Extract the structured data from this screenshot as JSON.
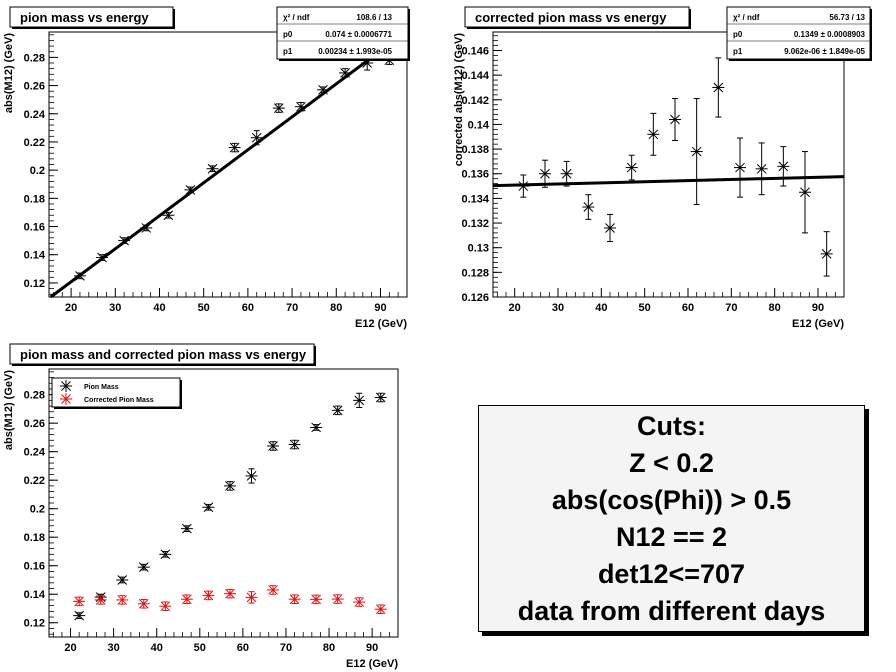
{
  "chart_data": [
    {
      "type": "scatter",
      "title": "pion mass vs energy",
      "xlabel": "E12 (GeV)",
      "ylabel": "abs(M12) (GeV)",
      "xlim": [
        15,
        96
      ],
      "ylim": [
        0.11,
        0.298
      ],
      "xticks": [
        20,
        30,
        40,
        50,
        60,
        70,
        80,
        90
      ],
      "xtick_labels": [
        "20",
        "30",
        "40",
        "50",
        "60",
        "70",
        "80",
        "90"
      ],
      "yticks": [
        0.12,
        0.14,
        0.16,
        0.18,
        0.2,
        0.22,
        0.24,
        0.26,
        0.28
      ],
      "ytick_labels": [
        "0.12",
        "0.14",
        "0.16",
        "0.18",
        "0.2",
        "0.22",
        "0.24",
        "0.26",
        "0.28"
      ],
      "series": [
        {
          "color": "#000000",
          "x": [
            22,
            27,
            32,
            37,
            42,
            47,
            52,
            57,
            62,
            67,
            72,
            77,
            82,
            87,
            92
          ],
          "y": [
            0.125,
            0.138,
            0.15,
            0.159,
            0.168,
            0.186,
            0.201,
            0.216,
            0.223,
            0.244,
            0.245,
            0.257,
            0.269,
            0.276,
            0.278
          ],
          "yerr": [
            0.002,
            0.002,
            0.002,
            0.002,
            0.002,
            0.002,
            0.002,
            0.003,
            0.005,
            0.003,
            0.003,
            0.002,
            0.003,
            0.005,
            0.003
          ]
        }
      ],
      "fit": {
        "p0": 0.074,
        "p1": 0.00234
      },
      "stats": [
        {
          "label": "χ² / ndf",
          "value": "108.6 / 13"
        },
        {
          "label": "p0",
          "value": "0.074 ± 0.0006771"
        },
        {
          "label": "p1",
          "value": "0.00234 ± 1.993e-05"
        }
      ],
      "grid": false
    },
    {
      "type": "scatter",
      "title": "corrected pion mass vs energy",
      "xlabel": "E12 (GeV)",
      "ylabel": "corrected abs(M12) (GeV)",
      "xlim": [
        15,
        96
      ],
      "ylim": [
        0.126,
        0.1475
      ],
      "xticks": [
        20,
        30,
        40,
        50,
        60,
        70,
        80,
        90
      ],
      "xtick_labels": [
        "20",
        "30",
        "40",
        "50",
        "60",
        "70",
        "80",
        "90"
      ],
      "yticks": [
        0.126,
        0.128,
        0.13,
        0.132,
        0.134,
        0.136,
        0.138,
        0.14,
        0.142,
        0.144,
        0.146
      ],
      "ytick_labels": [
        "0.126",
        "0.128",
        "0.13",
        "0.132",
        "0.134",
        "0.136",
        "0.138",
        "0.14",
        "0.142",
        "0.144",
        "0.146"
      ],
      "series": [
        {
          "color": "#000000",
          "x": [
            22,
            27,
            32,
            37,
            42,
            47,
            52,
            57,
            62,
            67,
            72,
            77,
            82,
            87,
            92
          ],
          "y": [
            0.135,
            0.136,
            0.136,
            0.1333,
            0.1316,
            0.1365,
            0.1392,
            0.1404,
            0.1378,
            0.143,
            0.1365,
            0.1364,
            0.1366,
            0.1345,
            0.1295
          ],
          "yerr": [
            0.0009,
            0.0011,
            0.001,
            0.001,
            0.0011,
            0.001,
            0.0017,
            0.0017,
            0.0043,
            0.0024,
            0.0024,
            0.0021,
            0.0016,
            0.0033,
            0.0018
          ]
        }
      ],
      "fit": {
        "p0": 0.1349,
        "p1": 9.062e-06
      },
      "stats": [
        {
          "label": "χ² / ndf",
          "value": "56.73 / 13"
        },
        {
          "label": "p0",
          "value": "0.1349 ± 0.0008903"
        },
        {
          "label": "p1",
          "value": "9.062e-06 ± 1.849e-05"
        }
      ],
      "grid": false
    },
    {
      "type": "scatter",
      "title": "pion mass and corrected pion mass vs energy",
      "xlabel": "E12 (GeV)",
      "ylabel": "abs(M12) (GeV)",
      "xlim": [
        15,
        96
      ],
      "ylim": [
        0.11,
        0.298
      ],
      "xticks": [
        20,
        30,
        40,
        50,
        60,
        70,
        80,
        90
      ],
      "xtick_labels": [
        "20",
        "30",
        "40",
        "50",
        "60",
        "70",
        "80",
        "90"
      ],
      "yticks": [
        0.12,
        0.14,
        0.16,
        0.18,
        0.2,
        0.22,
        0.24,
        0.26,
        0.28
      ],
      "ytick_labels": [
        "0.12",
        "0.14",
        "0.16",
        "0.18",
        "0.2",
        "0.22",
        "0.24",
        "0.26",
        "0.28"
      ],
      "legend_position": "top-left",
      "series": [
        {
          "name": "Pion Mass",
          "color": "#000000",
          "x": [
            22,
            27,
            32,
            37,
            42,
            47,
            52,
            57,
            62,
            67,
            72,
            77,
            82,
            87,
            92
          ],
          "y": [
            0.125,
            0.138,
            0.15,
            0.159,
            0.168,
            0.186,
            0.201,
            0.216,
            0.223,
            0.244,
            0.245,
            0.257,
            0.269,
            0.276,
            0.278
          ],
          "yerr": [
            0.002,
            0.002,
            0.002,
            0.002,
            0.002,
            0.002,
            0.002,
            0.003,
            0.005,
            0.003,
            0.003,
            0.002,
            0.003,
            0.005,
            0.003
          ]
        },
        {
          "name": "Corrected Pion Mass",
          "color": "#e01010",
          "x": [
            22,
            27,
            32,
            37,
            42,
            47,
            52,
            57,
            62,
            67,
            72,
            77,
            82,
            87,
            92
          ],
          "y": [
            0.135,
            0.136,
            0.136,
            0.1333,
            0.1316,
            0.1365,
            0.1392,
            0.1404,
            0.1378,
            0.143,
            0.1365,
            0.1364,
            0.1366,
            0.1345,
            0.1295
          ],
          "yerr": [
            0.003,
            0.003,
            0.003,
            0.003,
            0.003,
            0.003,
            0.003,
            0.003,
            0.004,
            0.003,
            0.003,
            0.003,
            0.003,
            0.003,
            0.003
          ]
        }
      ],
      "grid": false
    }
  ],
  "cuts": {
    "lines": [
      "Cuts:",
      "Z < 0.2",
      "abs(cos(Phi)) > 0.5",
      "N12 == 2",
      "det12<=707",
      "data from different days"
    ]
  }
}
